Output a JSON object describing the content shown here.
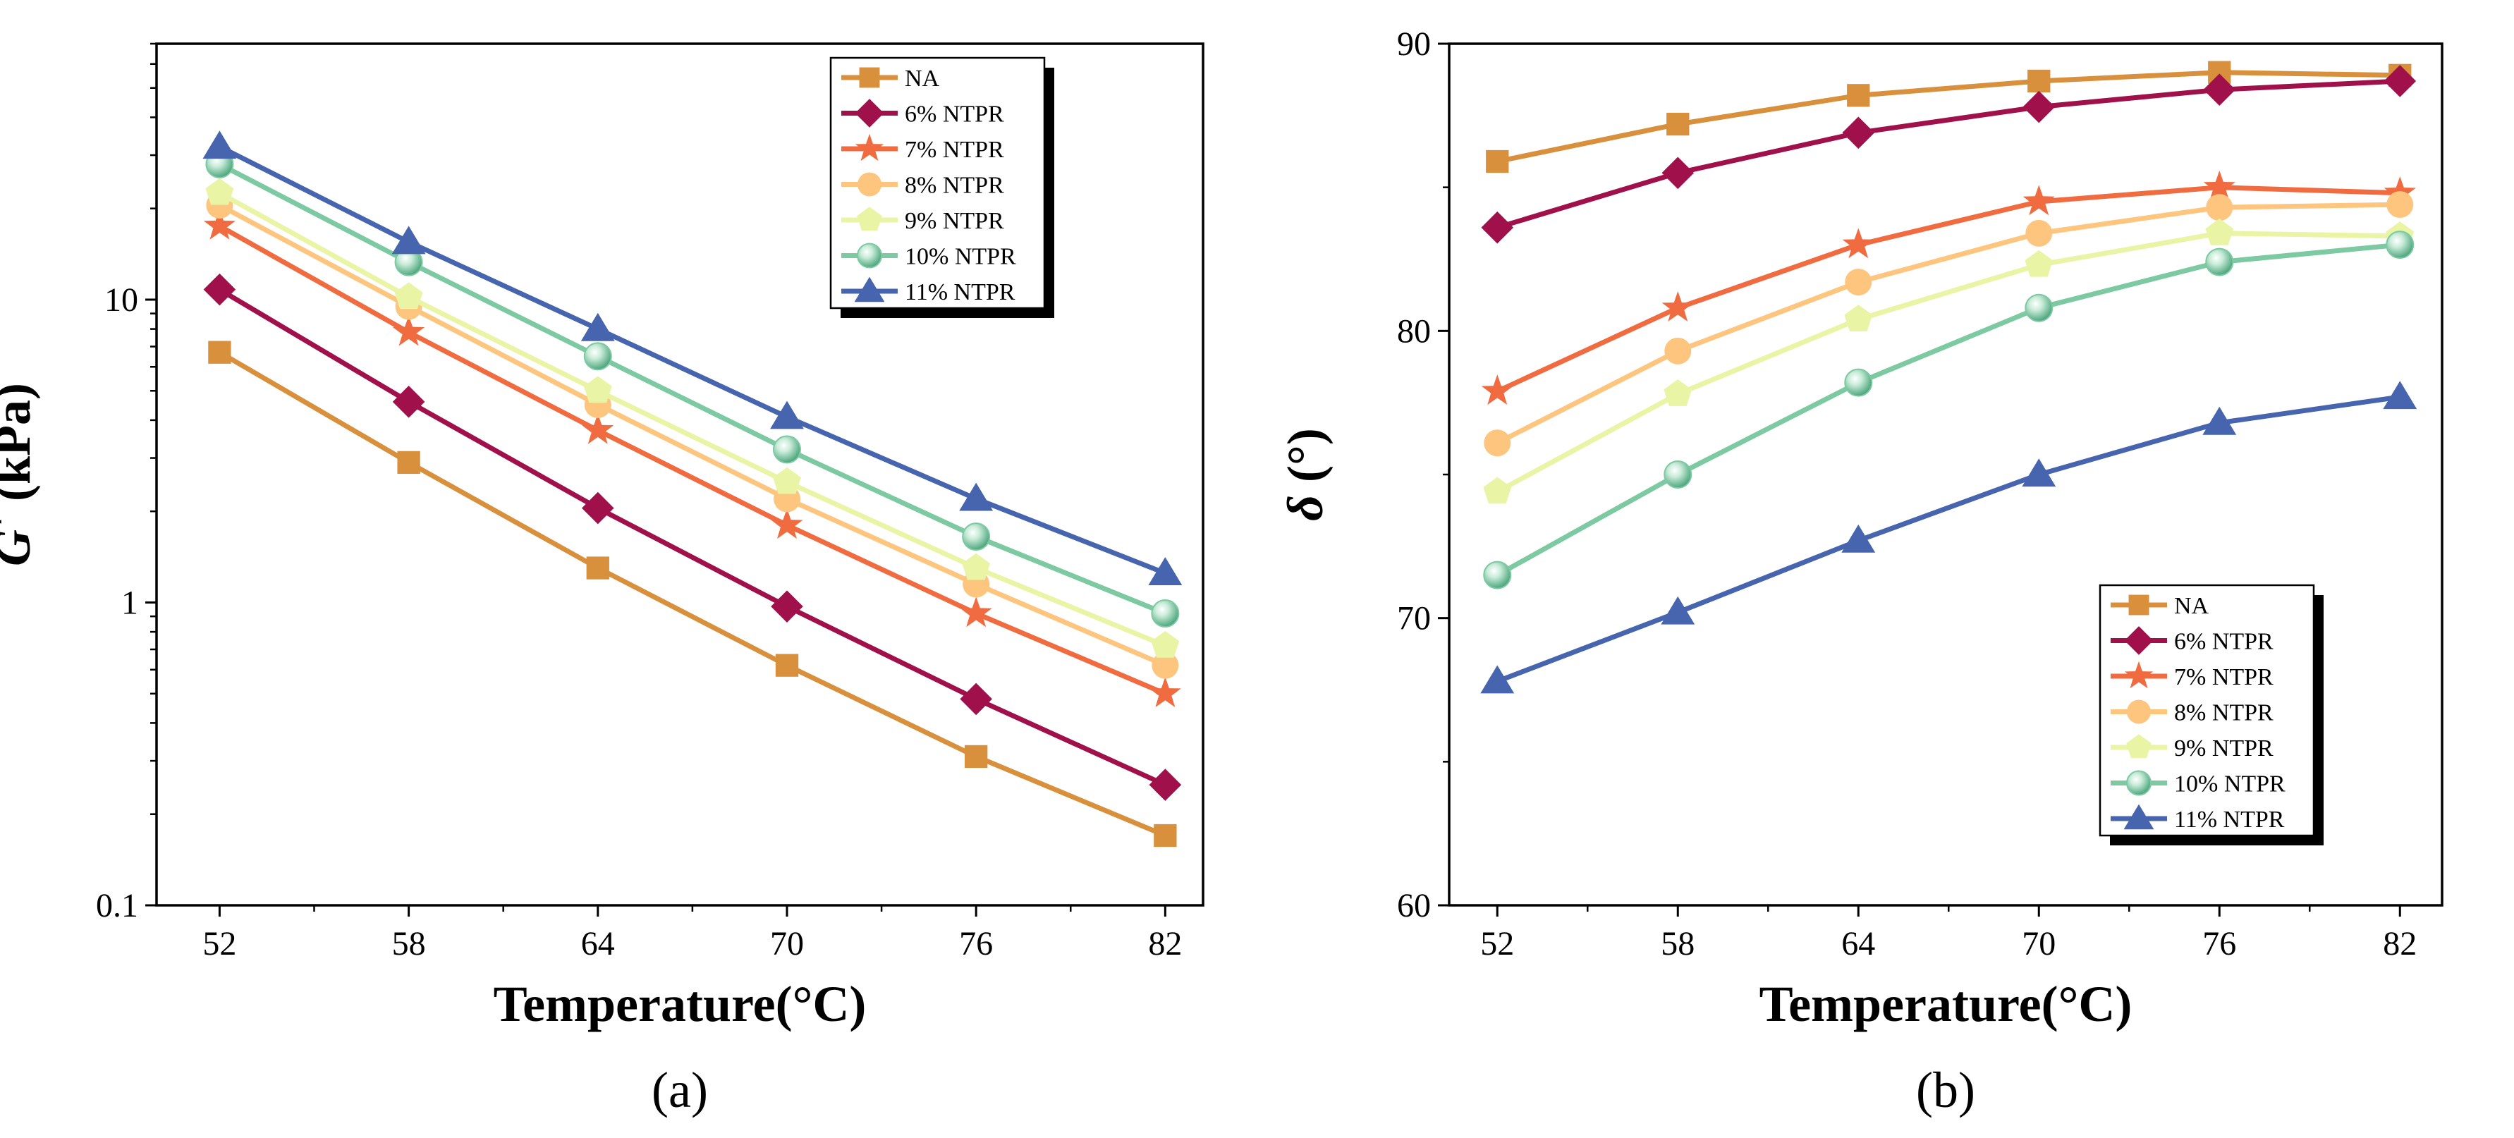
{
  "colors": {
    "NA": "#D8903C",
    "6% NTPR": "#A0104A",
    "7% NTPR": "#F06C40",
    "8% NTPR": "#FDC57E",
    "9% NTPR": "#E9F4A5",
    "10% NTPR": "#7CC9A2",
    "11% NTPR": "#4765AE"
  },
  "chart_data": [
    {
      "id": "a",
      "panel_label": "(a)",
      "type": "line",
      "y_scale": "log",
      "xlabel": "Temperature(°C)",
      "ylabel": "G* (kPa)",
      "ylabel_main": "G",
      "ylabel_sup": "*",
      "ylabel_rest": " (kPa)",
      "x": [
        52,
        58,
        64,
        70,
        76,
        82
      ],
      "x_ticks": [
        "52",
        "58",
        "64",
        "70",
        "76",
        "82"
      ],
      "xlim": [
        50,
        83.2
      ],
      "ylim": [
        0.1,
        70
      ],
      "y_ticks": [
        {
          "value": 0.1,
          "label": "0.1"
        },
        {
          "value": 1,
          "label": "1"
        },
        {
          "value": 10,
          "label": "10"
        }
      ],
      "legend_position": "top-right",
      "series": [
        {
          "name": "NA",
          "marker": "square",
          "values": [
            6.7,
            2.9,
            1.3,
            0.62,
            0.31,
            0.17
          ]
        },
        {
          "name": "6% NTPR",
          "marker": "diamond",
          "values": [
            10.8,
            4.6,
            2.05,
            0.97,
            0.48,
            0.25
          ]
        },
        {
          "name": "7% NTPR",
          "marker": "star",
          "values": [
            17.5,
            7.8,
            3.7,
            1.8,
            0.92,
            0.5
          ]
        },
        {
          "name": "8% NTPR",
          "marker": "circle",
          "values": [
            20.5,
            9.5,
            4.5,
            2.2,
            1.15,
            0.62
          ]
        },
        {
          "name": "9% NTPR",
          "marker": "pentagon",
          "values": [
            22.5,
            10.2,
            5.0,
            2.5,
            1.3,
            0.72
          ]
        },
        {
          "name": "10% NTPR",
          "marker": "sphere",
          "values": [
            28,
            13.3,
            6.5,
            3.2,
            1.65,
            0.92
          ]
        },
        {
          "name": "11% NTPR",
          "marker": "triangle",
          "values": [
            32,
            15.5,
            8.0,
            4.1,
            2.2,
            1.25
          ]
        }
      ]
    },
    {
      "id": "b",
      "panel_label": "(b)",
      "type": "line",
      "y_scale": "linear",
      "xlabel": "Temperature(°C)",
      "ylabel": "δ (°)",
      "ylabel_main": "δ",
      "ylabel_rest": " (°)",
      "x": [
        52,
        58,
        64,
        70,
        76,
        82
      ],
      "x_ticks": [
        "52",
        "58",
        "64",
        "70",
        "76",
        "82"
      ],
      "xlim": [
        50.4,
        83.4
      ],
      "ylim": [
        60,
        90
      ],
      "y_ticks": [
        {
          "value": 60,
          "label": "60"
        },
        {
          "value": 70,
          "label": "70"
        },
        {
          "value": 80,
          "label": "80"
        },
        {
          "value": 90,
          "label": "90"
        }
      ],
      "legend_position": "bottom-right",
      "series": [
        {
          "name": "NA",
          "marker": "square",
          "values": [
            85.9,
            87.2,
            88.2,
            88.7,
            89.0,
            88.9
          ]
        },
        {
          "name": "6% NTPR",
          "marker": "diamond",
          "values": [
            83.6,
            85.5,
            86.9,
            87.8,
            88.4,
            88.7
          ]
        },
        {
          "name": "7% NTPR",
          "marker": "star",
          "values": [
            77.9,
            80.8,
            83.0,
            84.5,
            85.0,
            84.8
          ]
        },
        {
          "name": "8% NTPR",
          "marker": "circle",
          "values": [
            76.1,
            79.3,
            81.7,
            83.4,
            84.3,
            84.4
          ]
        },
        {
          "name": "9% NTPR",
          "marker": "pentagon",
          "values": [
            74.4,
            77.8,
            80.4,
            82.3,
            83.4,
            83.3
          ]
        },
        {
          "name": "10% NTPR",
          "marker": "sphere",
          "values": [
            71.5,
            75.0,
            78.2,
            80.8,
            82.4,
            83.0
          ]
        },
        {
          "name": "11% NTPR",
          "marker": "triangle",
          "values": [
            67.8,
            70.2,
            72.7,
            75.0,
            76.8,
            77.7
          ]
        }
      ]
    }
  ]
}
